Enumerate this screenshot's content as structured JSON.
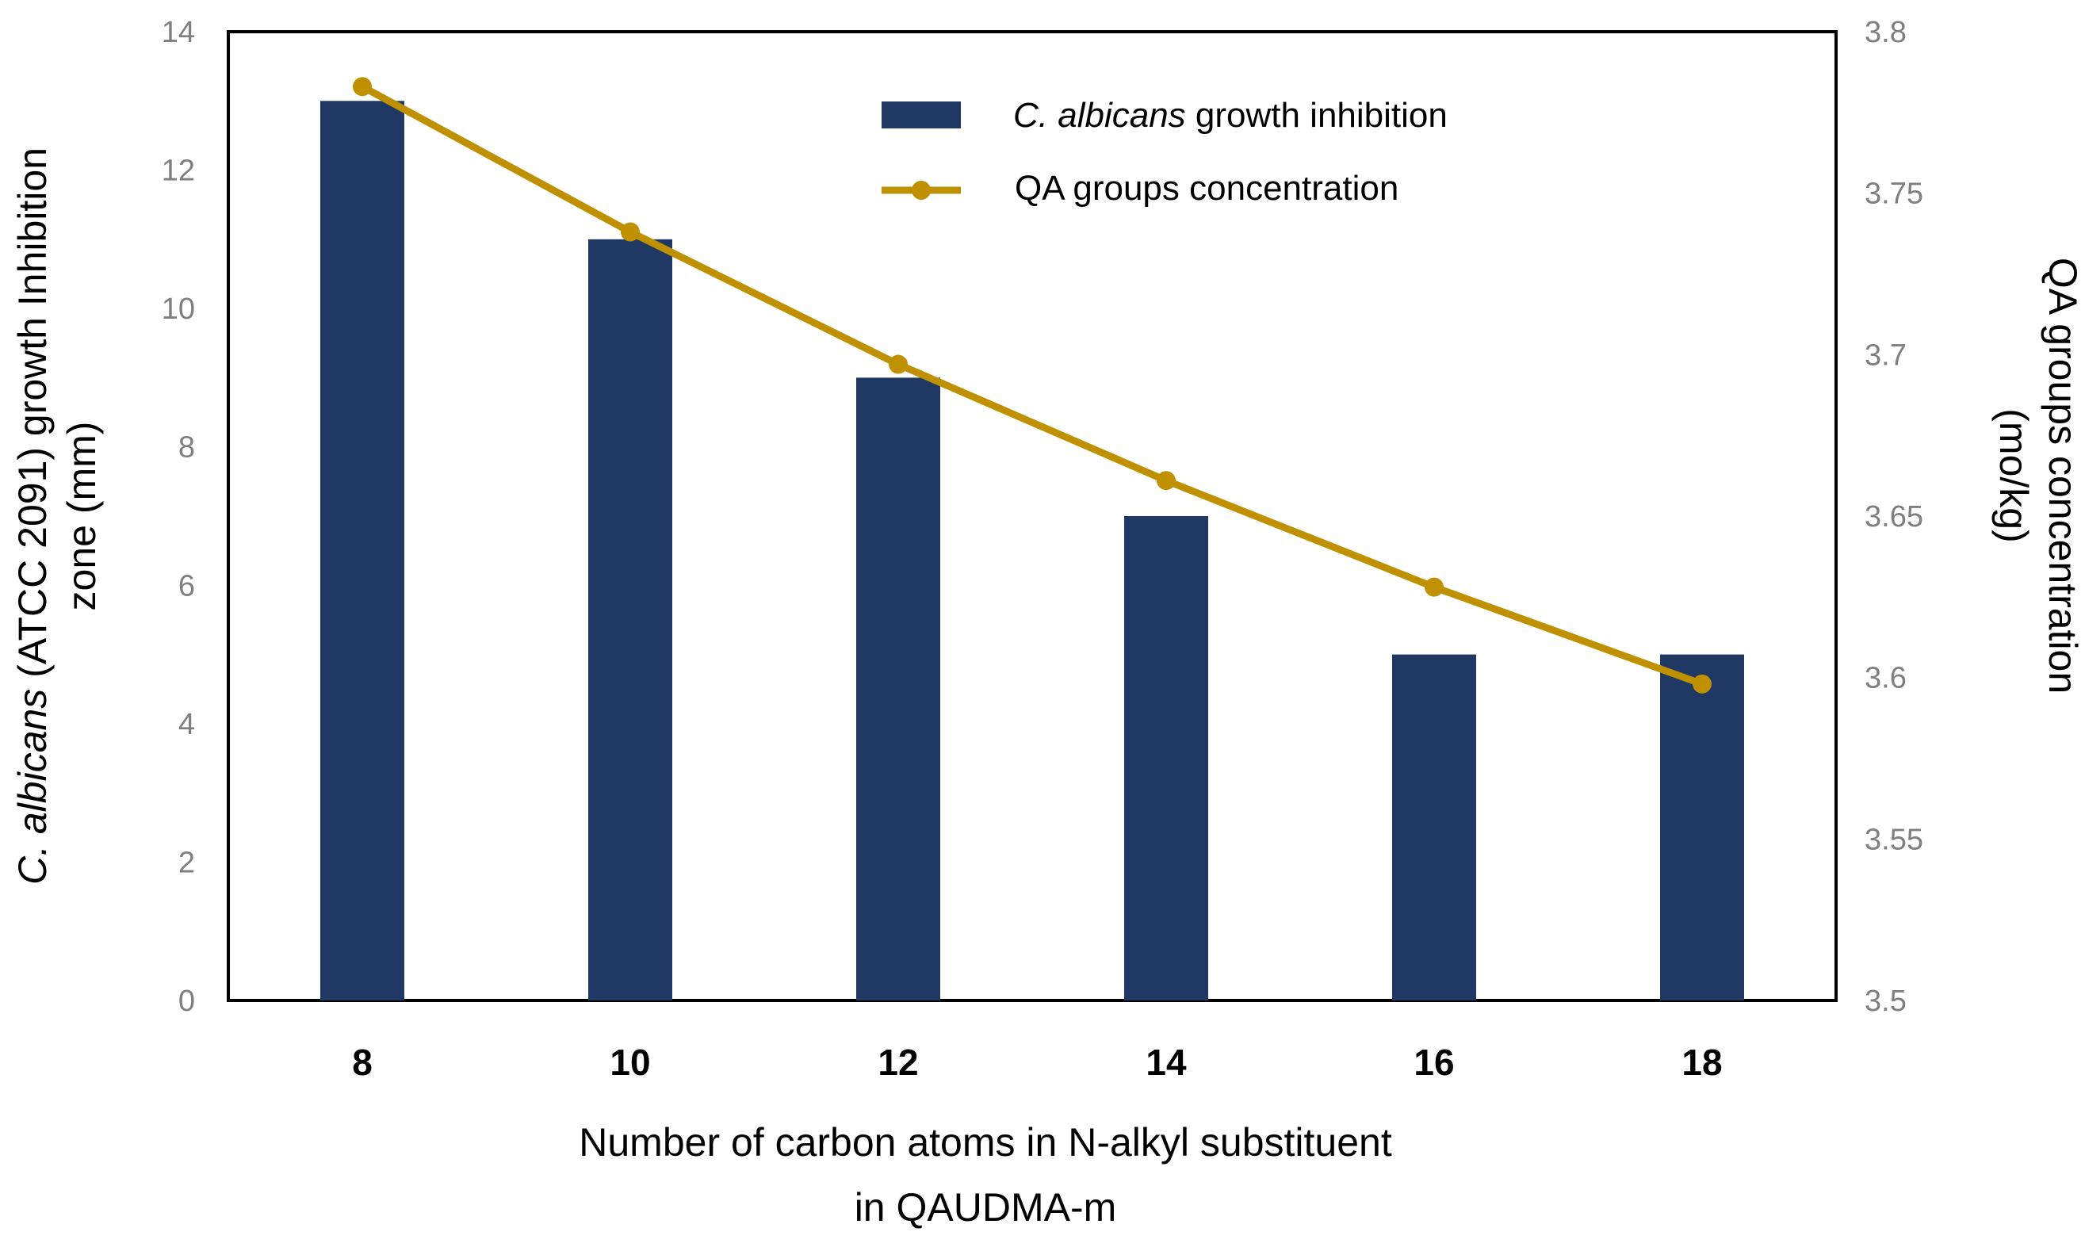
{
  "chart_data": {
    "type": "bar+line",
    "categories": [
      "8",
      "10",
      "12",
      "14",
      "16",
      "18"
    ],
    "series": [
      {
        "name": "C. albicans growth inhibition",
        "name_italic": "C. albicans",
        "name_rest": " growth inhibition",
        "type": "bar",
        "axis": "left",
        "color": "#1f3864",
        "values": [
          13,
          11,
          9,
          7,
          5,
          5
        ]
      },
      {
        "name": "QA groups concentration",
        "type": "line",
        "axis": "right",
        "color": "#bf9000",
        "values": [
          3.783,
          3.738,
          3.697,
          3.661,
          3.628,
          3.598
        ]
      }
    ],
    "left_axis": {
      "min": 0,
      "max": 14,
      "ticks": [
        "0",
        "2",
        "4",
        "6",
        "8",
        "10",
        "12",
        "14"
      ],
      "label_line1_italic": "C. albicans",
      "label_line1_rest": " (ATCC 2091) growth Inhibition",
      "label_line2": "zone  (mm)"
    },
    "right_axis": {
      "min": 3.5,
      "max": 3.8,
      "ticks": [
        "3.5",
        "3.55",
        "3.6",
        "3.65",
        "3.7",
        "3.75",
        "3.8"
      ],
      "label_line1": "QA groups concentration",
      "label_line2": "(mo/kg)"
    },
    "x_axis": {
      "label_line1": "Number of carbon atoms in N-alkyl substituent",
      "label_line2": "in QAUDMA-m"
    },
    "legend": {
      "position": "top-center"
    },
    "grid": false
  }
}
